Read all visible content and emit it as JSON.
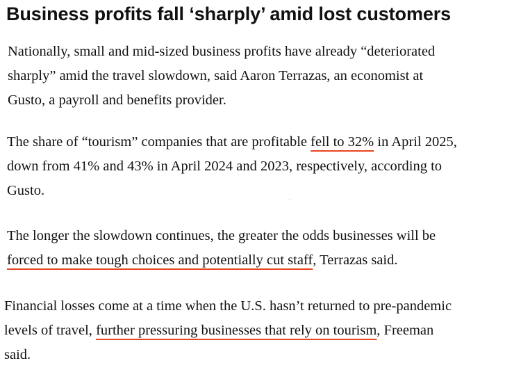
{
  "heading": "Business profits fall ‘sharply’ amid lost customers",
  "paragraphs": [
    {
      "line1": "Nationally, small and mid-sized business profits have already “deteriorated",
      "line2": "sharply” amid the travel slowdown, said Aaron Terrazas, an economist at",
      "line3": "Gusto, a payroll and benefits provider."
    },
    {
      "before_link": "The share of “tourism” companies that are profitable ",
      "link": "fell to 32%",
      "after_link": " in April 2025,",
      "line2": "down from 41% and 43% in April 2024 and 2023, respectively, according to",
      "line3": "Gusto."
    },
    {
      "line1": "The longer the slowdown continues, the greater the odds businesses will be",
      "link": "forced to make tough choices and potentially cut staff",
      "after_link": ", Terrazas said."
    },
    {
      "line1": "Financial losses come at a time when the U.S. hasn’t returned to pre-pandemic",
      "before_link": "levels of travel, ",
      "link": "further pressuring businesses that rely on tourism",
      "after_link": ", Freeman",
      "line3": "said."
    }
  ],
  "colors": {
    "text": "#111111",
    "link_underline": "#e8451f",
    "background": "#ffffff"
  }
}
